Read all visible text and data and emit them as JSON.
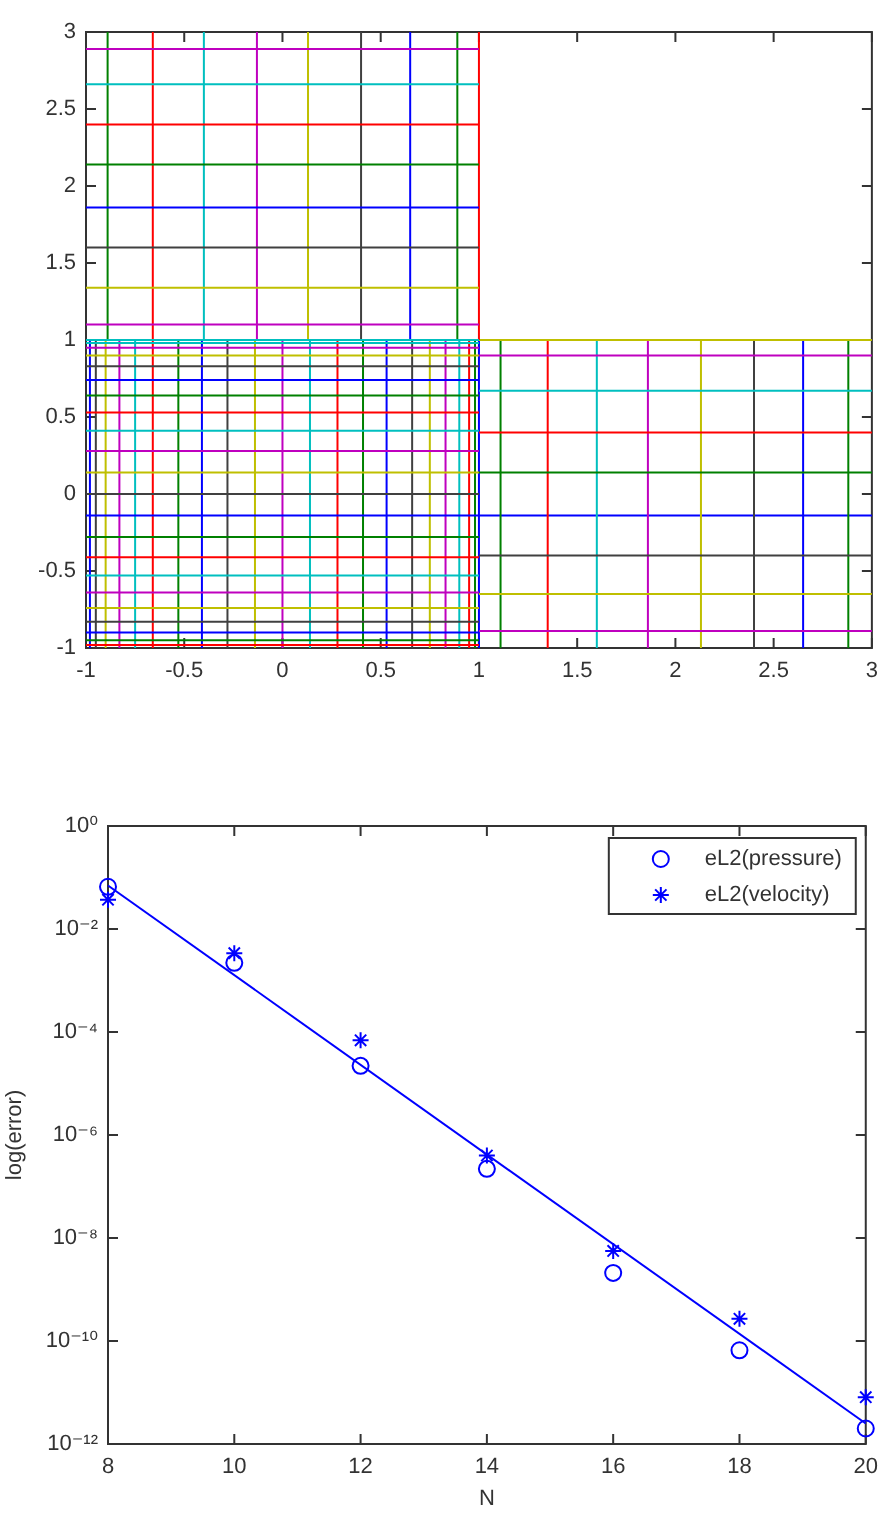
{
  "chart_data": [
    {
      "type": "line",
      "marker": "none",
      "line_style": "solid",
      "xlim": [
        -1,
        3
      ],
      "xticks": [
        -1,
        -0.5,
        0,
        0.5,
        1,
        1.5,
        2,
        2.5,
        3
      ],
      "ylim": [
        -1,
        3
      ],
      "yticks": [
        -1,
        -0.5,
        0,
        0.5,
        1,
        1.5,
        2,
        2.5,
        3
      ],
      "series": [
        {
          "color": "#0000ff",
          "x": [
            1,
            1
          ],
          "values": [
            -1,
            1
          ]
        },
        {
          "color": "#008000",
          "x": [
            0.98,
            0.98
          ],
          "values": [
            -1,
            1
          ]
        },
        {
          "color": "#ff0000",
          "x": [
            0.95,
            0.95
          ],
          "values": [
            -1,
            1
          ]
        },
        {
          "color": "#00bfbf",
          "x": [
            0.9,
            0.9
          ],
          "values": [
            -1,
            1
          ]
        },
        {
          "color": "#bf00bf",
          "x": [
            0.83,
            0.83
          ],
          "values": [
            -1,
            1
          ]
        },
        {
          "color": "#bfbf00",
          "x": [
            0.75,
            0.75
          ],
          "values": [
            -1,
            1
          ]
        },
        {
          "color": "#404040",
          "x": [
            0.66,
            0.66
          ],
          "values": [
            -1,
            1
          ]
        },
        {
          "color": "#0000ff",
          "x": [
            0.53,
            0.53
          ],
          "values": [
            -1,
            1
          ]
        },
        {
          "color": "#008000",
          "x": [
            0.41,
            0.41
          ],
          "values": [
            -1,
            1
          ]
        },
        {
          "color": "#ff0000",
          "x": [
            0.28,
            0.28
          ],
          "values": [
            -1,
            1
          ]
        },
        {
          "color": "#00bfbf",
          "x": [
            0.14,
            0.14
          ],
          "values": [
            -1,
            1
          ]
        },
        {
          "color": "#bf00bf",
          "x": [
            0,
            0
          ],
          "values": [
            -1,
            1
          ]
        },
        {
          "color": "#bfbf00",
          "x": [
            -0.14,
            -0.14
          ],
          "values": [
            -1,
            1
          ]
        },
        {
          "color": "#404040",
          "x": [
            -0.28,
            -0.28
          ],
          "values": [
            -1,
            1
          ]
        },
        {
          "color": "#0000ff",
          "x": [
            -0.41,
            -0.41
          ],
          "values": [
            -1,
            1
          ]
        },
        {
          "color": "#008000",
          "x": [
            -0.53,
            -0.53
          ],
          "values": [
            -1,
            1
          ]
        },
        {
          "color": "#ff0000",
          "x": [
            -0.66,
            -0.66
          ],
          "values": [
            -1,
            3
          ]
        },
        {
          "color": "#00bfbf",
          "x": [
            -0.75,
            -0.75
          ],
          "values": [
            -1,
            1
          ]
        },
        {
          "color": "#bf00bf",
          "x": [
            -0.83,
            -0.83
          ],
          "values": [
            -1,
            1
          ]
        },
        {
          "color": "#bfbf00",
          "x": [
            -0.9,
            -0.9
          ],
          "values": [
            -1,
            1
          ]
        },
        {
          "color": "#404040",
          "x": [
            -0.95,
            -0.95
          ],
          "values": [
            -1,
            1
          ]
        },
        {
          "color": "#0000ff",
          "x": [
            -0.98,
            -0.98
          ],
          "values": [
            -1,
            1
          ]
        },
        {
          "color": "#00bfbf",
          "x": [
            -1,
            1
          ],
          "values": [
            0.98,
            0.98
          ]
        },
        {
          "color": "#bf00bf",
          "x": [
            -1,
            1
          ],
          "values": [
            0.95,
            0.95
          ]
        },
        {
          "color": "#bfbf00",
          "x": [
            -1,
            1
          ],
          "values": [
            0.9,
            0.9
          ]
        },
        {
          "color": "#404040",
          "x": [
            -1,
            1
          ],
          "values": [
            0.83,
            0.83
          ]
        },
        {
          "color": "#0000ff",
          "x": [
            -1,
            1
          ],
          "values": [
            0.74,
            0.74
          ]
        },
        {
          "color": "#008000",
          "x": [
            -1,
            1
          ],
          "values": [
            0.64,
            0.64
          ]
        },
        {
          "color": "#ff0000",
          "x": [
            -1,
            1
          ],
          "values": [
            0.53,
            0.53
          ]
        },
        {
          "color": "#00bfbf",
          "x": [
            -1,
            1
          ],
          "values": [
            0.41,
            0.41
          ]
        },
        {
          "color": "#bf00bf",
          "x": [
            -1,
            1
          ],
          "values": [
            0.28,
            0.28
          ]
        },
        {
          "color": "#bfbf00",
          "x": [
            -1,
            1
          ],
          "values": [
            0.14,
            0.14
          ]
        },
        {
          "color": "#404040",
          "x": [
            -1,
            1
          ],
          "values": [
            0,
            0
          ]
        },
        {
          "color": "#0000ff",
          "x": [
            -1,
            3
          ],
          "values": [
            -0.14,
            -0.14
          ]
        },
        {
          "color": "#008000",
          "x": [
            -1,
            1
          ],
          "values": [
            -0.28,
            -0.28
          ]
        },
        {
          "color": "#ff0000",
          "x": [
            -1,
            1
          ],
          "values": [
            -0.41,
            -0.41
          ]
        },
        {
          "color": "#00bfbf",
          "x": [
            -1,
            1
          ],
          "values": [
            -0.53,
            -0.53
          ]
        },
        {
          "color": "#bf00bf",
          "x": [
            -1,
            1
          ],
          "values": [
            -0.64,
            -0.64
          ]
        },
        {
          "color": "#bfbf00",
          "x": [
            -1,
            1
          ],
          "values": [
            -0.74,
            -0.74
          ]
        },
        {
          "color": "#404040",
          "x": [
            -1,
            1
          ],
          "values": [
            -0.83,
            -0.83
          ]
        },
        {
          "color": "#0000ff",
          "x": [
            -1,
            1
          ],
          "values": [
            -0.9,
            -0.9
          ]
        },
        {
          "color": "#008000",
          "x": [
            -1,
            1
          ],
          "values": [
            -0.95,
            -0.95
          ]
        },
        {
          "color": "#ff0000",
          "x": [
            -1,
            1
          ],
          "values": [
            -0.98,
            -0.98
          ]
        },
        {
          "color": "#008000",
          "x": [
            1.11,
            1.11
          ],
          "values": [
            -1,
            1
          ]
        },
        {
          "color": "#ff0000",
          "x": [
            1.35,
            1.35
          ],
          "values": [
            -1,
            1
          ]
        },
        {
          "color": "#00bfbf",
          "x": [
            1.6,
            1.6
          ],
          "values": [
            -1,
            1
          ]
        },
        {
          "color": "#bf00bf",
          "x": [
            1.86,
            1.86
          ],
          "values": [
            -1,
            1
          ]
        },
        {
          "color": "#bfbf00",
          "x": [
            2.13,
            2.13
          ],
          "values": [
            -1,
            1
          ]
        },
        {
          "color": "#404040",
          "x": [
            2.4,
            2.4
          ],
          "values": [
            -1,
            1
          ]
        },
        {
          "color": "#0000ff",
          "x": [
            2.65,
            2.65
          ],
          "values": [
            -1,
            1
          ]
        },
        {
          "color": "#008000",
          "x": [
            2.88,
            2.88
          ],
          "values": [
            -1,
            1
          ]
        },
        {
          "color": "#bf00bf",
          "x": [
            1,
            3
          ],
          "values": [
            -0.89,
            -0.89
          ]
        },
        {
          "color": "#bfbf00",
          "x": [
            1,
            3
          ],
          "values": [
            -0.65,
            -0.65
          ]
        },
        {
          "color": "#404040",
          "x": [
            1,
            3
          ],
          "values": [
            -0.4,
            -0.4
          ]
        },
        {
          "color": "#008000",
          "x": [
            1,
            3
          ],
          "values": [
            0.14,
            0.14
          ]
        },
        {
          "color": "#ff0000",
          "x": [
            1,
            3
          ],
          "values": [
            0.4,
            0.4
          ]
        },
        {
          "color": "#00bfbf",
          "x": [
            1,
            3
          ],
          "values": [
            0.67,
            0.67
          ]
        },
        {
          "color": "#bf00bf",
          "x": [
            1,
            3
          ],
          "values": [
            0.9,
            0.9
          ]
        },
        {
          "color": "#bfbf00",
          "x": [
            1,
            3
          ],
          "values": [
            1,
            1
          ]
        },
        {
          "color": "#008000",
          "x": [
            -0.89,
            -0.89
          ],
          "values": [
            1,
            3
          ]
        },
        {
          "color": "#00bfbf",
          "x": [
            -0.4,
            -0.4
          ],
          "values": [
            1,
            3
          ]
        },
        {
          "color": "#bf00bf",
          "x": [
            -0.13,
            -0.13
          ],
          "values": [
            1,
            3
          ]
        },
        {
          "color": "#bfbf00",
          "x": [
            0.13,
            0.13
          ],
          "values": [
            1,
            3
          ]
        },
        {
          "color": "#404040",
          "x": [
            0.4,
            0.4
          ],
          "values": [
            1,
            3
          ]
        },
        {
          "color": "#0000ff",
          "x": [
            0.65,
            0.65
          ],
          "values": [
            1,
            3
          ]
        },
        {
          "color": "#008000",
          "x": [
            0.89,
            0.89
          ],
          "values": [
            1,
            3
          ]
        },
        {
          "color": "#ff0000",
          "x": [
            1,
            1
          ],
          "values": [
            1,
            3
          ]
        },
        {
          "color": "#00bfbf",
          "x": [
            -1,
            1
          ],
          "values": [
            1,
            1
          ]
        },
        {
          "color": "#bf00bf",
          "x": [
            -1,
            1
          ],
          "values": [
            1.1,
            1.1
          ]
        },
        {
          "color": "#bfbf00",
          "x": [
            -1,
            1
          ],
          "values": [
            1.34,
            1.34
          ]
        },
        {
          "color": "#404040",
          "x": [
            -1,
            1
          ],
          "values": [
            1.6,
            1.6
          ]
        },
        {
          "color": "#0000ff",
          "x": [
            -1,
            1
          ],
          "values": [
            1.86,
            1.86
          ]
        },
        {
          "color": "#008000",
          "x": [
            -1,
            1
          ],
          "values": [
            2.14,
            2.14
          ]
        },
        {
          "color": "#ff0000",
          "x": [
            -1,
            1
          ],
          "values": [
            2.4,
            2.4
          ]
        },
        {
          "color": "#00bfbf",
          "x": [
            -1,
            1
          ],
          "values": [
            2.66,
            2.66
          ]
        },
        {
          "color": "#bf00bf",
          "x": [
            -1,
            1
          ],
          "values": [
            2.89,
            2.89
          ]
        }
      ]
    },
    {
      "type": "scatter",
      "xlabel": "N",
      "ylabel": "log(error)",
      "log": "y",
      "legend": "top right",
      "xlim": [
        8,
        20
      ],
      "xticks": [
        8,
        10,
        12,
        14,
        16,
        18,
        20
      ],
      "ylim": [
        1e-12,
        1
      ],
      "yticks": [
        {
          "value": 1e-12,
          "label": "10⁻¹²"
        },
        {
          "value": 1e-10,
          "label": "10⁻¹⁰"
        },
        {
          "value": 1e-08,
          "label": "10⁻⁸"
        },
        {
          "value": 1e-06,
          "label": "10⁻⁶"
        },
        {
          "value": 0.0001,
          "label": "10⁻⁴"
        },
        {
          "value": 0.01,
          "label": "10⁻²"
        },
        {
          "value": 1,
          "label": "10⁰"
        }
      ],
      "series": [
        {
          "name": "eL2(pressure)",
          "marker": "circle",
          "color": "#0000ff",
          "x": [
            8,
            10,
            12,
            14,
            16,
            18,
            20
          ],
          "values": [
            0.066,
            0.0022,
            2.2e-05,
            2.2e-07,
            2.1e-09,
            6.6e-11,
            2e-12
          ]
        },
        {
          "name": "eL2(velocity)",
          "marker": "cross",
          "color": "#0000ff",
          "x": [
            8,
            10,
            12,
            14,
            16,
            18,
            20
          ],
          "values": [
            0.037,
            0.0034,
            6.9e-05,
            4e-07,
            5.6e-09,
            2.7e-10,
            8.1e-12
          ]
        },
        {
          "type": "line",
          "marker": "none",
          "line_style": "solid",
          "color": "#0000ff",
          "x": [
            8,
            20
          ],
          "values": [
            0.07,
            2.5e-12
          ]
        }
      ]
    }
  ]
}
